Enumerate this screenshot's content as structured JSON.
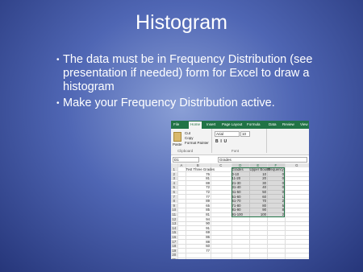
{
  "slide": {
    "title": "Histogram",
    "bullets": [
      "The data must be in Frequency Distribution (see presentation if needed) form for Excel to draw a histogram",
      "Make your Frequency Distribution active."
    ]
  },
  "excel": {
    "tabs": [
      "File",
      "Home",
      "Insert",
      "Page Layout",
      "Formula",
      "Data",
      "Review",
      "View"
    ],
    "clipboard": {
      "cut": "Cut",
      "copy": "Copy",
      "paste": "Paste",
      "format_painter": "Format Painter",
      "group": "Clipboard"
    },
    "font": {
      "name": "Arial",
      "size": "10",
      "group": "Font"
    },
    "name_box": "D1",
    "formula": "Grades",
    "columns": [
      "A",
      "B",
      "C",
      "D",
      "E",
      "F",
      "G"
    ],
    "row_numbers": [
      1,
      2,
      3,
      4,
      5,
      6,
      7,
      8,
      9,
      10,
      11,
      12,
      13,
      14,
      15,
      16,
      17,
      18,
      19,
      20,
      21
    ],
    "rows": [
      [
        null,
        "Test Three Grades",
        null,
        "Grades",
        "Upper Bound",
        "Frequency"
      ],
      [
        null,
        76,
        null,
        "0-10",
        10,
        0
      ],
      [
        null,
        81,
        null,
        "11-20",
        20,
        0
      ],
      [
        null,
        88,
        null,
        "21-30",
        30,
        0
      ],
      [
        null,
        72,
        null,
        "31-40",
        40,
        0
      ],
      [
        null,
        72,
        null,
        "41-50",
        50,
        0
      ],
      [
        null,
        77,
        null,
        "51-60",
        60,
        1
      ],
      [
        null,
        89,
        null,
        "61-70",
        70,
        2
      ],
      [
        null,
        65,
        null,
        "71-80",
        80,
        5
      ],
      [
        null,
        85,
        null,
        "81-90",
        90,
        8
      ],
      [
        null,
        81,
        null,
        "91-100",
        100,
        2
      ],
      [
        null,
        94,
        null,
        null,
        null,
        null
      ],
      [
        null,
        90,
        null,
        null,
        null,
        null
      ],
      [
        null,
        91,
        null,
        null,
        null,
        null
      ],
      [
        null,
        69,
        null,
        null,
        null,
        null
      ],
      [
        null,
        86,
        null,
        null,
        null,
        null
      ],
      [
        null,
        88,
        null,
        null,
        null,
        null
      ],
      [
        null,
        60,
        null,
        null,
        null,
        null
      ],
      [
        null,
        77,
        null,
        null,
        null,
        null
      ]
    ]
  }
}
